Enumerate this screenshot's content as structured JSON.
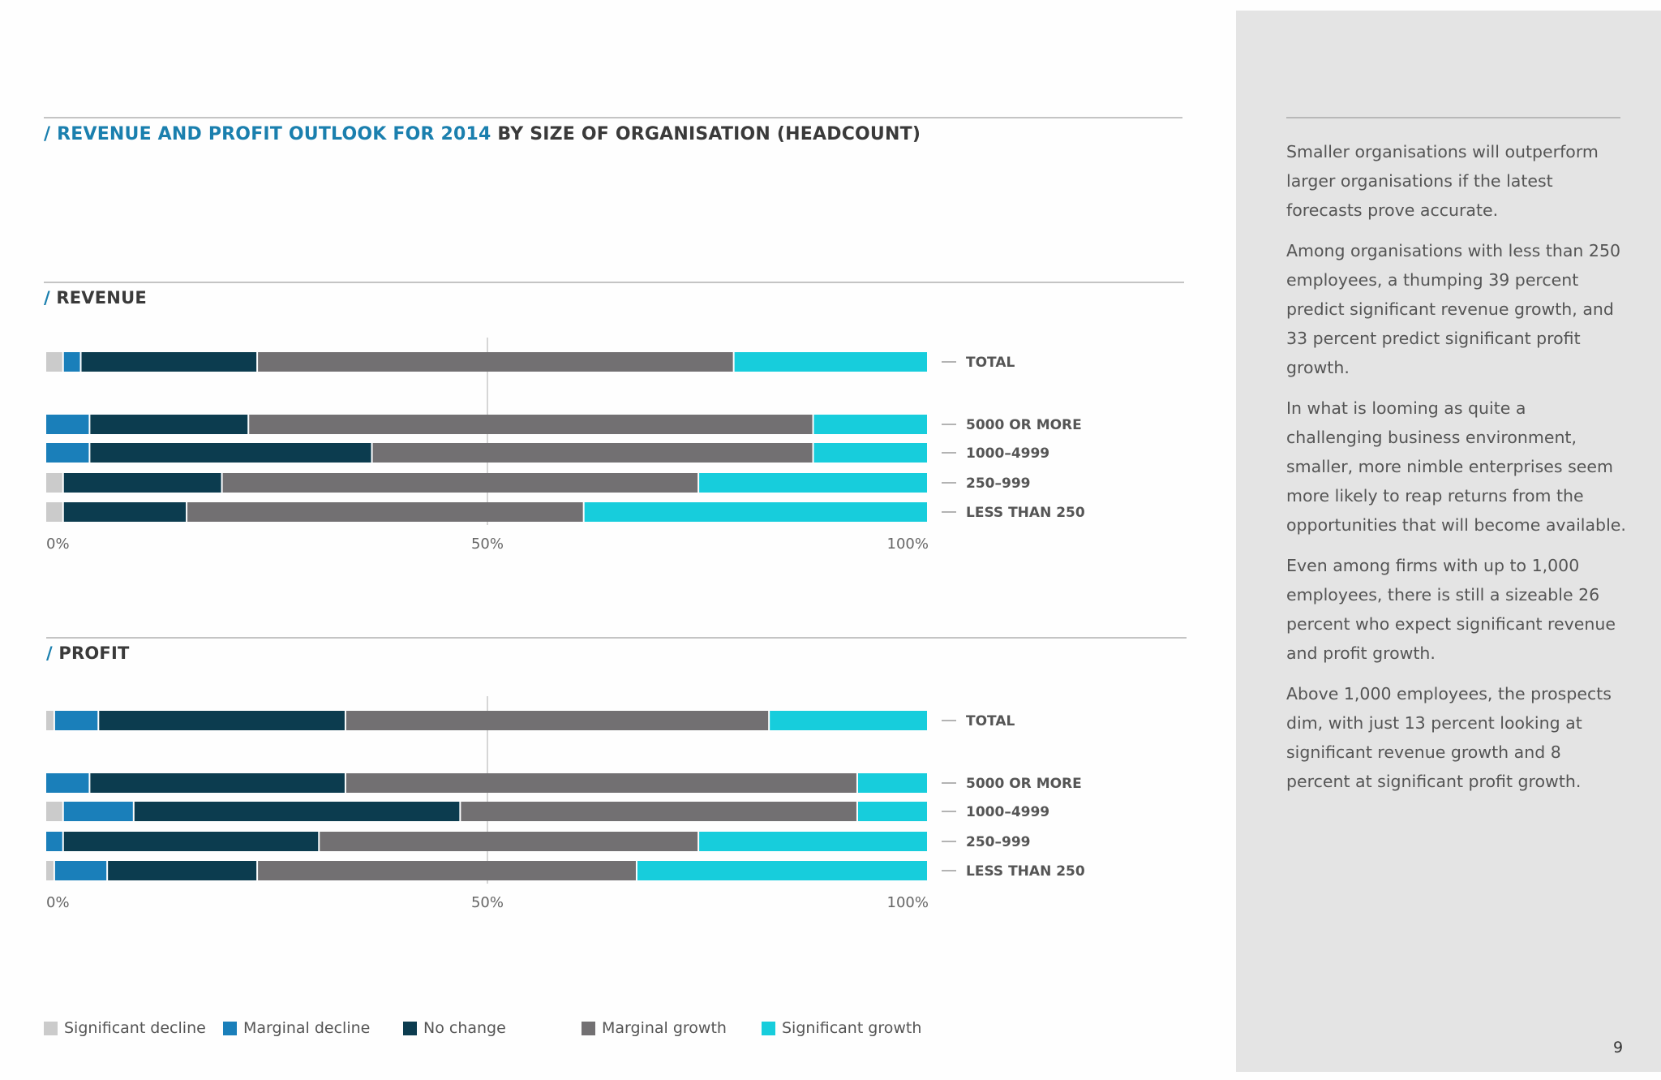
{
  "title": {
    "accent": "/ REVENUE AND PROFIT OUTLOOK FOR 2014",
    "rest": " BY SIZE OF ORGANISATION (HEADCOUNT)"
  },
  "legend": [
    {
      "label": "Significant decline",
      "color": "#cbcbcb"
    },
    {
      "label": "Marginal decline",
      "color": "#1a7fba"
    },
    {
      "label": "No change",
      "color": "#0c3c4f"
    },
    {
      "label": "Marginal growth",
      "color": "#727072"
    },
    {
      "label": "Significant growth",
      "color": "#17cddc"
    }
  ],
  "chart_data": [
    {
      "type": "bar",
      "orientation": "horizontal",
      "stacked": true,
      "title": "/ REVENUE",
      "categories": [
        "TOTAL",
        "5000 OR MORE",
        "1000–4999",
        "250–999",
        "LESS THAN 250"
      ],
      "x_ticks": [
        "0%",
        "50%",
        "100%"
      ],
      "xlim": [
        0,
        100
      ],
      "series": [
        {
          "name": "Significant decline",
          "values": [
            2,
            0,
            0,
            2,
            2
          ]
        },
        {
          "name": "Marginal decline",
          "values": [
            2,
            5,
            5,
            0,
            0
          ]
        },
        {
          "name": "No change",
          "values": [
            20,
            18,
            32,
            18,
            14
          ]
        },
        {
          "name": "Marginal growth",
          "values": [
            54,
            64,
            50,
            54,
            45
          ]
        },
        {
          "name": "Significant growth",
          "values": [
            22,
            13,
            13,
            26,
            39
          ]
        }
      ]
    },
    {
      "type": "bar",
      "orientation": "horizontal",
      "stacked": true,
      "title": "/ PROFIT",
      "categories": [
        "TOTAL",
        "5000 OR MORE",
        "1000–4999",
        "250–999",
        "LESS THAN 250"
      ],
      "x_ticks": [
        "0%",
        "50%",
        "100%"
      ],
      "xlim": [
        0,
        100
      ],
      "series": [
        {
          "name": "Significant decline",
          "values": [
            1,
            0,
            2,
            0,
            1
          ]
        },
        {
          "name": "Marginal decline",
          "values": [
            5,
            5,
            8,
            2,
            6
          ]
        },
        {
          "name": "No change",
          "values": [
            28,
            29,
            37,
            29,
            17
          ]
        },
        {
          "name": "Marginal growth",
          "values": [
            48,
            58,
            45,
            43,
            43
          ]
        },
        {
          "name": "Significant growth",
          "values": [
            18,
            8,
            8,
            26,
            33
          ]
        }
      ]
    }
  ],
  "sidebar": {
    "paragraphs": [
      "Smaller organisations will outperform larger organisations if the latest forecasts prove accurate.",
      "Among organisations with less than 250 employees, a thumping 39 percent predict significant revenue growth, and 33 percent predict significant profit growth.",
      "In what is looming as quite a challenging business environment, smaller, more nimble enterprises seem more likely to reap returns from the opportunities that will become available.",
      "Even among firms with up to 1,000 employees, there is still a sizeable 26 percent who expect significant revenue and profit growth.",
      "Above 1,000 employees, the prospects dim, with just 13 percent looking at significant revenue growth and 8 percent at significant profit growth."
    ]
  },
  "page_number": "9"
}
